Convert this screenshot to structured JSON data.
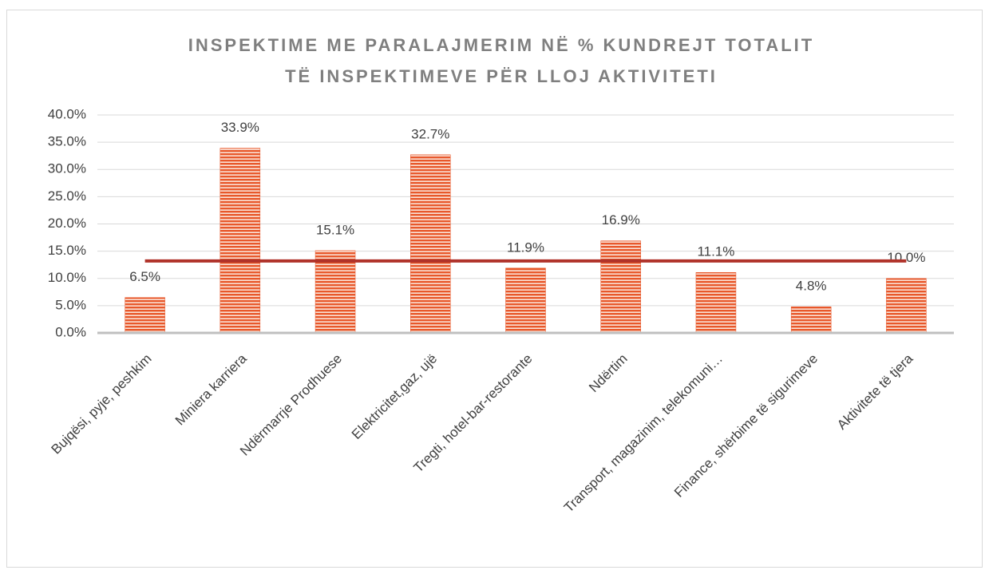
{
  "chart_data": {
    "type": "bar",
    "title": [
      "INSPEKTIME ME PARALAJMERIM NË % KUNDREJT TOTALIT",
      "TË INSPEKTIMEVE PËR LLOJ AKTIVITETI"
    ],
    "categories": [
      "Bujqësi, pyje, peshkim",
      "Miniera karriera",
      "Ndërmarrje Prodhuese",
      "Elektricitet,gaz, ujë",
      "Tregti, hotel-bar-restorante",
      "Ndërtim",
      "Transport, magazinim, telekomuni…",
      "Finance, shërbime të sigurimeve",
      "Aktivitete të tjera"
    ],
    "values": [
      6.5,
      33.9,
      15.1,
      32.7,
      11.9,
      16.9,
      11.1,
      4.8,
      10.0
    ],
    "value_labels": [
      "6.5%",
      "33.9%",
      "15.1%",
      "32.7%",
      "11.9%",
      "16.9%",
      "11.1%",
      "4.8%",
      "10.0%"
    ],
    "color": "#e8582b",
    "line": {
      "values": [
        13.2,
        13.2,
        13.2,
        13.2,
        13.2,
        13.2,
        13.2,
        13.2,
        13.2
      ],
      "color": "#b0322a"
    },
    "ylim": [
      0,
      40
    ],
    "yticks": [
      {
        "value": 0,
        "label": "0.0%"
      },
      {
        "value": 5,
        "label": "5.0%"
      },
      {
        "value": 10,
        "label": "10.0%"
      },
      {
        "value": 15,
        "label": "15.0%"
      },
      {
        "value": 20,
        "label": "20.0%"
      },
      {
        "value": 25,
        "label": "25.0%"
      },
      {
        "value": 30,
        "label": "30.0%"
      },
      {
        "value": 35,
        "label": "35.0%"
      },
      {
        "value": 40,
        "label": "40.0%"
      }
    ],
    "grid": true
  }
}
